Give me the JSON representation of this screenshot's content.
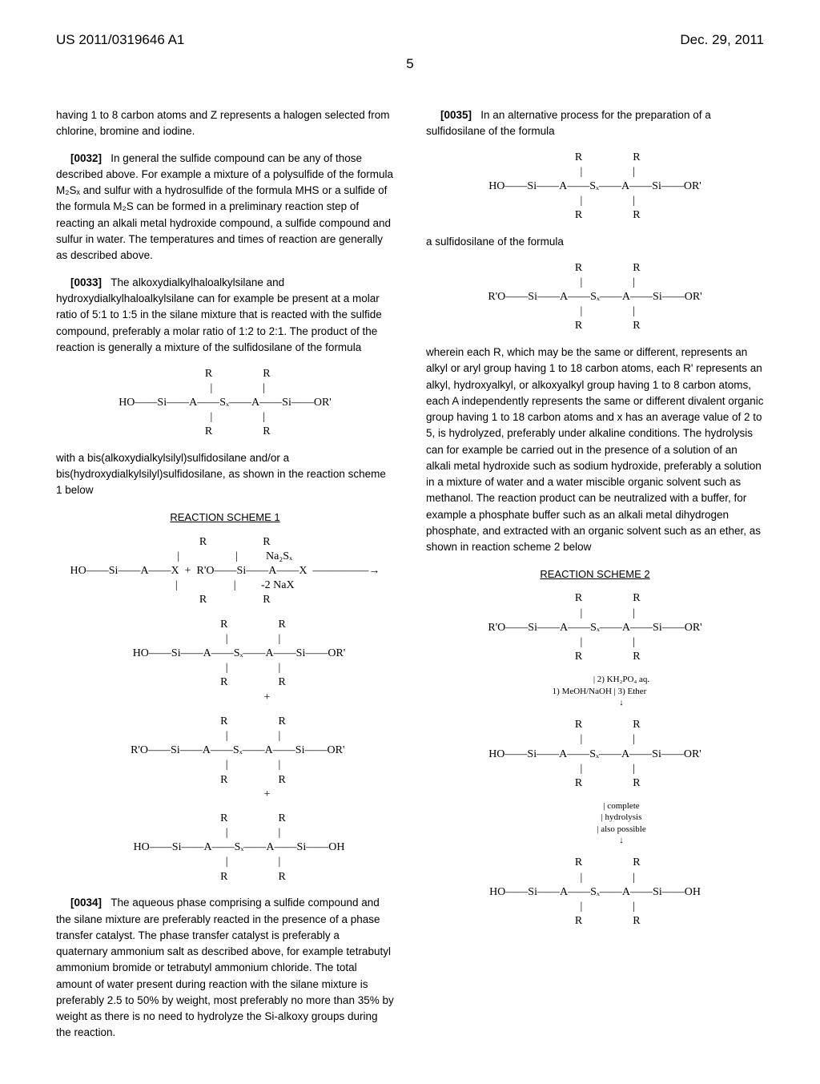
{
  "header": {
    "pubNumber": "US 2011/0319646 A1",
    "date": "Dec. 29, 2011"
  },
  "pageNumber": "5",
  "left": {
    "p1": "having 1 to 8 carbon atoms and Z represents a halogen selected from chlorine, bromine and iodine.",
    "p2num": "[0032]",
    "p2": "In general the sulfide compound can be any of those described above. For example a mixture of a polysulfide of the formula M₂Sₓ and sulfur with a hydrosulfide of the formula MHS or a sulfide of the formula M₂S can be formed in a preliminary reaction step of reacting an alkali metal hydroxide compound, a sulfide compound and sulfur in water. The temperatures and times of reaction are generally as described above.",
    "p3num": "[0033]",
    "p3": "The alkoxydialkylhaloalkylsilane and hydroxydialkylhaloalkylsilane can for example be present at a molar ratio of 5:1 to 1:5 in the silane mixture that is reacted with the sulfide compound, preferably a molar ratio of 1:2 to 2:1. The product of the reaction is generally a mixture of the sulfidosilane of the formula",
    "p4": "with a bis(alkoxydialkylsilyl)sulfidosilane and/or a bis(hydroxydialkylsilyl)sulfidosilane, as shown in the reaction scheme 1 below",
    "scheme1Title": "REACTION SCHEME 1",
    "p5num": "[0034]",
    "p5": "The aqueous phase comprising a sulfide compound and the silane mixture are preferably reacted in the presence of a phase transfer catalyst. The phase transfer catalyst is preferably a quaternary ammonium salt as described above, for example tetrabutyl ammonium bromide or tetrabutyl ammonium chloride. The total amount of water present during reaction with the silane mixture is preferably 2.5 to 50% by weight, most preferably no more than 35% by weight as there is no need to hydrolyze the Si-alkoxy groups during the reaction."
  },
  "right": {
    "p1num": "[0035]",
    "p1": "In an alternative process for the preparation of a sulfidosilane of the formula",
    "p2": "a sulfidosilane of the formula",
    "p3": "wherein each R, which may be the same or different, represents an alkyl or aryl group having 1 to 18 carbon atoms, each R' represents an alkyl, hydroxyalkyl, or alkoxyalkyl group having 1 to 8 carbon atoms, each A independently represents the same or different divalent organic group having 1 to 18 carbon atoms and x has an average value of 2 to 5, is hydrolyzed, preferably under alkaline conditions. The hydrolysis can for example be carried out in the presence of a solution of an alkali metal hydroxide such as sodium hydroxide, preferably a solution in a mixture of water and a water miscible organic solvent such as methanol. The reaction product can be neutralized with a buffer, for example a phosphate buffer such as an alkali metal dihydrogen phosphate, and extracted with an organic solvent such as an ether, as shown in reaction scheme 2 below",
    "scheme2Title": "REACTION SCHEME 2"
  },
  "formulas": {
    "f1": "         R                  R\n         |                  |\nHO——Si——A——Sₓ——A——Si——OR'\n         |                  |\n         R                  R",
    "s1line1": "       R                    R\n       |                    |          Na₂Sₓ\nHO——Si——A——X  +  R'O——Si——A——X  —————→\n       |                    |         -2 NaX\n       R                    R",
    "s1line2": "                    R                  R\n                    |                  |\n          HO——Si——A——Sₓ——A——Si——OR'\n                    |                  |\n                    R                  R\n                              +",
    "s1line3": "                    R                  R\n                    |                  |\n         R'O——Si——A——Sₓ——A——Si——OR'\n                    |                  |\n                    R                  R\n                              +",
    "s1line4": "                    R                  R\n                    |                  |\n          HO——Si——A——Sₓ——A——Si——OH\n                    |                  |\n                    R                  R",
    "f2": "         R                  R\n         |                  |\nHO——Si——A——Sₓ——A——Si——OR'\n         |                  |\n         R                  R",
    "f3": "         R                  R\n         |                  |\nR'O——Si——A——Sₓ——A——Si——OR'\n         |                  |\n         R                  R",
    "s2line1": "         R                  R\n         |                  |\nR'O——Si——A——Sₓ——A——Si——OR'\n         |                  |\n         R                  R",
    "s2arrow1": "                        | 2) KH₂PO₄ aq.\n    1) MeOH/NaOH | 3) Ether\n                        ↓",
    "s2line2": "         R                  R\n         |                  |\nHO——Si——A——Sₓ——A——Si——OR'\n         |                  |\n         R                  R",
    "s2arrow2": "                        | complete\n                        | hydrolysis\n                        | also possible\n                        ↓",
    "s2line3": "         R                  R\n         |                  |\nHO——Si——A——Sₓ——A——Si——OH\n         |                  |\n         R                  R"
  }
}
